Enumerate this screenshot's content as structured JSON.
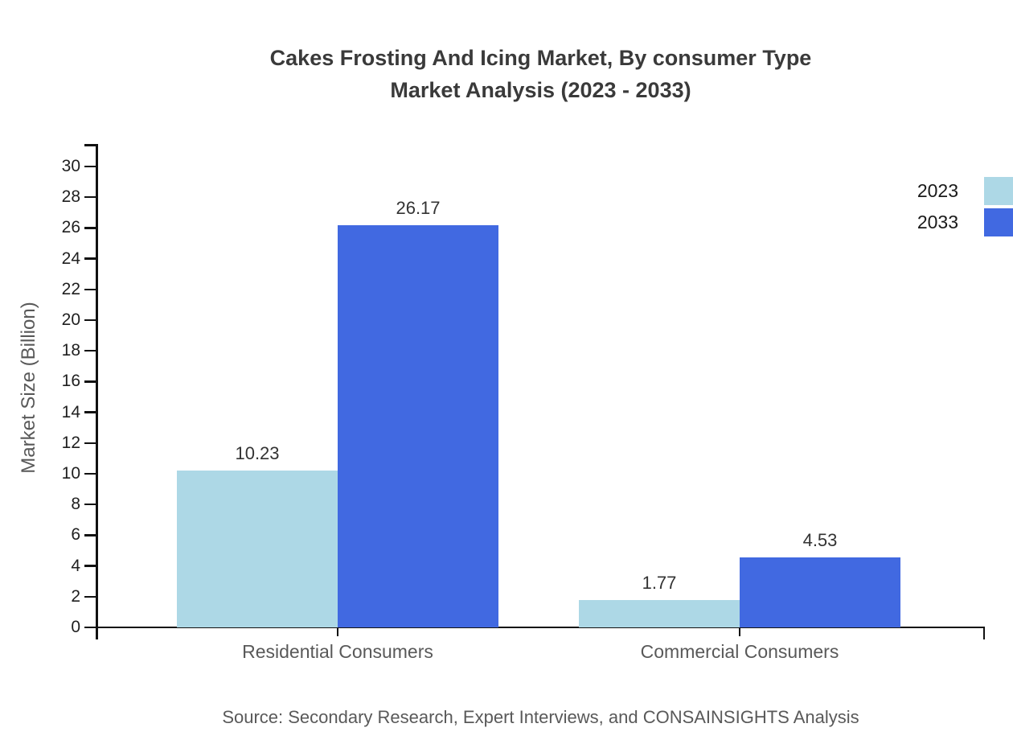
{
  "chart_data": {
    "type": "bar",
    "title": "Cakes Frosting And Icing Market, By consumer Type",
    "subtitle": "Market Analysis (2023 - 2033)",
    "ylabel": "Market Size (Billion)",
    "categories": [
      "Residential Consumers",
      "Commercial Consumers"
    ],
    "series": [
      {
        "name": "2023",
        "color": "#add8e6",
        "values": [
          10.23,
          1.77
        ]
      },
      {
        "name": "2033",
        "color": "#4169e1",
        "values": [
          26.17,
          4.53
        ]
      }
    ],
    "ylim": [
      0,
      30
    ],
    "ytick_step": 2,
    "grid": false,
    "legend_position": "top-right",
    "value_label_decimals": 2,
    "axis_color": "#111111"
  },
  "source_note": "Source: Secondary Research, Expert Interviews, and CONSAINSIGHTS Analysis"
}
